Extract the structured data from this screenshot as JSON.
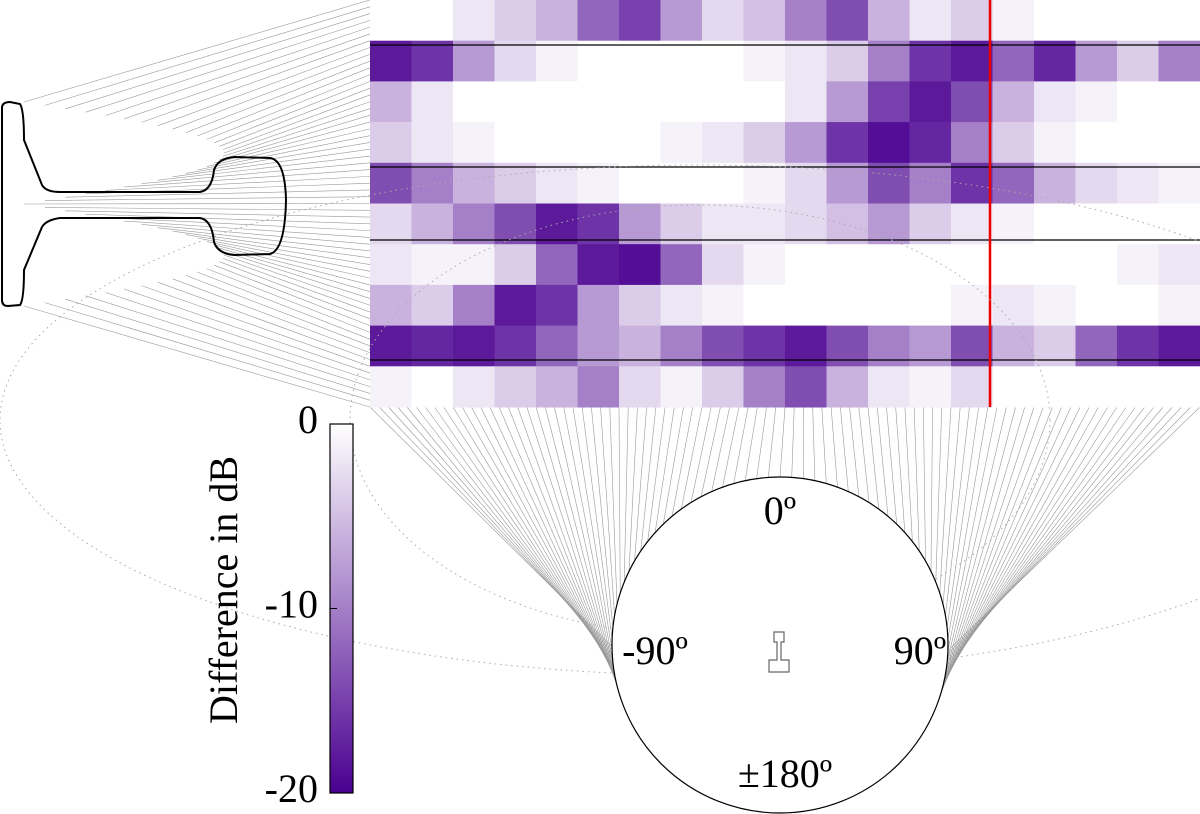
{
  "chart_data": {
    "type": "heatmap",
    "z": [
      [
        0,
        0,
        -2,
        -4,
        -6,
        -12,
        -15,
        -8,
        -3,
        -5,
        -10,
        -14,
        -6,
        -2,
        -4,
        -1,
        0,
        0,
        0,
        0
      ],
      [
        -18,
        -16,
        -8,
        -3,
        -1,
        0,
        0,
        0,
        0,
        -1,
        -2,
        -4,
        -10,
        -16,
        -18,
        -12,
        -17,
        -8,
        -4,
        -10
      ],
      [
        -6,
        -2,
        0,
        0,
        0,
        0,
        0,
        0,
        0,
        0,
        -2,
        -8,
        -15,
        -18,
        -14,
        -6,
        -2,
        -1,
        0,
        0
      ],
      [
        -4,
        -2,
        -1,
        0,
        0,
        0,
        0,
        -1,
        -2,
        -4,
        -8,
        -16,
        -19,
        -17,
        -10,
        -4,
        -1,
        0,
        0,
        0
      ],
      [
        -14,
        -10,
        -6,
        -4,
        -2,
        -1,
        0,
        0,
        0,
        -1,
        -3,
        -8,
        -14,
        -10,
        -16,
        -12,
        -6,
        -3,
        -2,
        -1
      ],
      [
        -3,
        -6,
        -10,
        -14,
        -18,
        -16,
        -8,
        -4,
        -2,
        -2,
        -3,
        -5,
        -8,
        -4,
        -2,
        -1,
        0,
        0,
        0,
        0
      ],
      [
        -2,
        -1,
        -1,
        -4,
        -12,
        -18,
        -19,
        -12,
        -3,
        -1,
        0,
        0,
        0,
        0,
        0,
        0,
        0,
        0,
        -1,
        -2
      ],
      [
        -6,
        -4,
        -10,
        -18,
        -16,
        -8,
        -4,
        -2,
        -1,
        0,
        0,
        0,
        0,
        0,
        -1,
        -2,
        -1,
        0,
        0,
        -1
      ],
      [
        -18,
        -17,
        -18,
        -16,
        -12,
        -8,
        -6,
        -10,
        -14,
        -16,
        -18,
        -14,
        -10,
        -8,
        -14,
        -6,
        -4,
        -12,
        -16,
        -18
      ],
      [
        -1,
        0,
        -2,
        -4,
        -6,
        -10,
        -3,
        -1,
        -4,
        -10,
        -14,
        -6,
        -2,
        -1,
        -3,
        0,
        0,
        0,
        0,
        0
      ]
    ],
    "zlim": [
      -20,
      0
    ],
    "zticks": [
      0,
      -10,
      -20
    ],
    "colorbar_label": "Difference in dB",
    "colormap": [
      "#ffffff",
      "#4a0090"
    ],
    "circle_labels": [
      "0º",
      "-90º",
      "90º",
      "±180º"
    ]
  }
}
